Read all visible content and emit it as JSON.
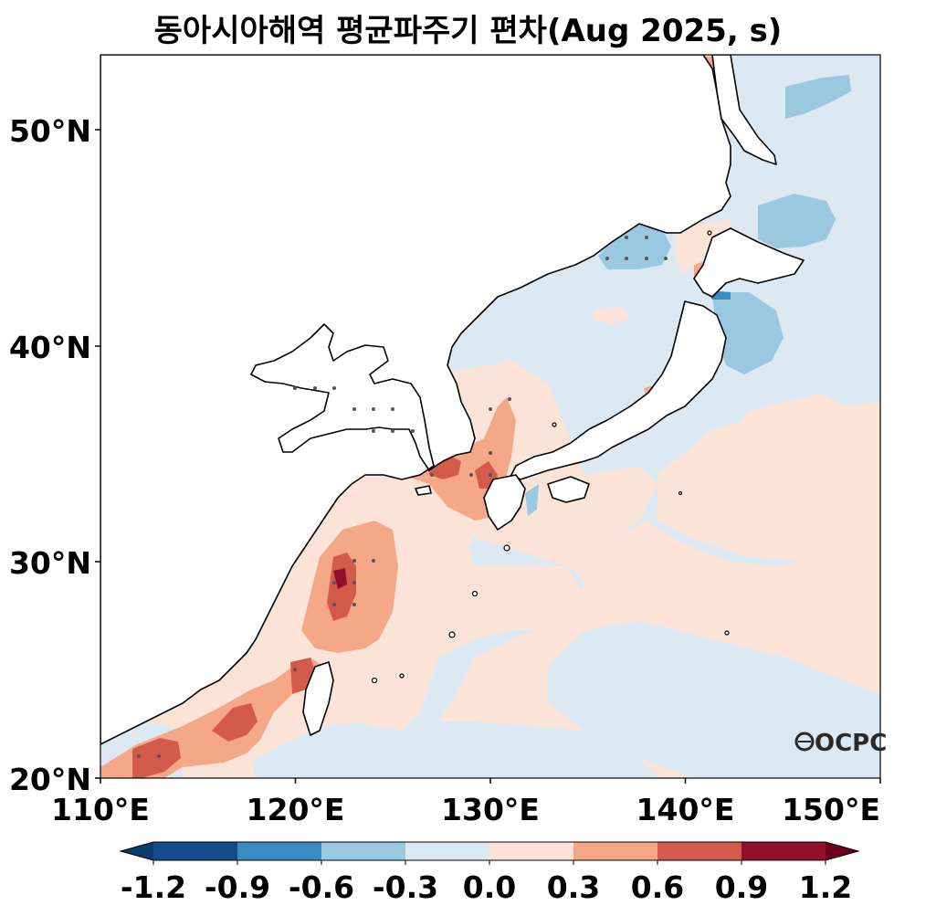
{
  "title": "동아시아해역 평균파주기 편차(Aug 2025, s)",
  "logo": "OCPC",
  "axes": {
    "lon_ticks": [
      "110°E",
      "120°E",
      "130°E",
      "140°E",
      "150°E"
    ],
    "lat_ticks": [
      "50°N",
      "40°N",
      "30°N",
      "20°N"
    ],
    "lon_range": [
      110,
      150
    ],
    "lat_range": [
      20,
      53.5
    ]
  },
  "colorbar": {
    "levels": [
      "-1.2",
      "-0.9",
      "-0.6",
      "-0.3",
      "0.0",
      "0.3",
      "0.6",
      "0.9",
      "1.2"
    ],
    "colors": [
      "#144c8a",
      "#3a8bc2",
      "#9ac8e0",
      "#dce9f3",
      "#fbe3d8",
      "#f4a888",
      "#d45a4b",
      "#920e2b"
    ],
    "under_color": "#0a3a6e",
    "over_color": "#6b0020",
    "extend": "both"
  },
  "colors": {
    "land": "#ffffff",
    "coastline": "#000000",
    "significance_dots": "#555555"
  }
}
